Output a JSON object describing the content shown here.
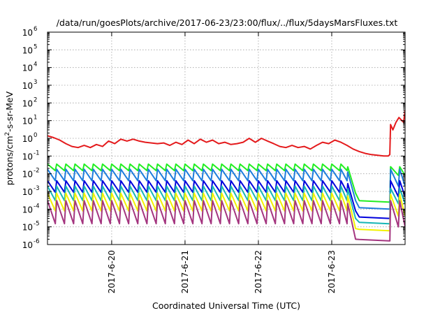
{
  "chart_data": {
    "type": "line",
    "title": "/data/run/goesPlots/archive/2017-06-23/23:00/flux/../flux/5daysMarsFluxes.txt",
    "xlabel": "Coordinated Universal Time (UTC)",
    "ylabel": "protons/cm²-s-sr-MeV",
    "ylabel_parts": {
      "pre": "protons/cm",
      "sup": "2",
      "post": "-s-sr-MeV"
    },
    "yscale": "log",
    "ylim": [
      1e-06,
      1000000.0
    ],
    "y_tick_base": "10",
    "y_tick_exponents": [
      "-6",
      "-5",
      "-4",
      "-3",
      "-2",
      "-1",
      "0",
      "1",
      "2",
      "3",
      "4",
      "5",
      "6"
    ],
    "x_range_days": [
      "2017-06-19 03:00",
      "2017-06-24 00:00"
    ],
    "x_tick_labels": [
      "2017-6-20",
      "2017-6-21",
      "2017-6-22",
      "2017-6-23"
    ],
    "x_ticks": [
      "2017-06-20 00:00",
      "2017-06-21 00:00",
      "2017-06-22 00:00",
      "2017-06-23 00:00"
    ],
    "grid": true,
    "legend": "none",
    "series": [
      {
        "color": "#e41a1c",
        "points": [
          [
            "2017-06-19 03:00",
            1.4
          ],
          [
            "2017-06-19 05:00",
            1.1
          ],
          [
            "2017-06-19 07:00",
            0.8
          ],
          [
            "2017-06-19 09:00",
            0.5
          ],
          [
            "2017-06-19 11:00",
            0.35
          ],
          [
            "2017-06-19 13:00",
            0.3
          ],
          [
            "2017-06-19 15:00",
            0.4
          ],
          [
            "2017-06-19 17:00",
            0.3
          ],
          [
            "2017-06-19 19:00",
            0.45
          ],
          [
            "2017-06-19 21:00",
            0.35
          ],
          [
            "2017-06-19 23:00",
            0.7
          ],
          [
            "2017-06-20 01:00",
            0.5
          ],
          [
            "2017-06-20 03:00",
            0.9
          ],
          [
            "2017-06-20 05:00",
            0.7
          ],
          [
            "2017-06-20 07:00",
            0.9
          ],
          [
            "2017-06-20 09:00",
            0.7
          ],
          [
            "2017-06-20 11:00",
            0.6
          ],
          [
            "2017-06-20 13:00",
            0.55
          ],
          [
            "2017-06-20 15:00",
            0.5
          ],
          [
            "2017-06-20 17:00",
            0.55
          ],
          [
            "2017-06-20 19:00",
            0.4
          ],
          [
            "2017-06-20 21:00",
            0.6
          ],
          [
            "2017-06-20 23:00",
            0.45
          ],
          [
            "2017-06-21 01:00",
            0.8
          ],
          [
            "2017-06-21 03:00",
            0.5
          ],
          [
            "2017-06-21 05:00",
            0.9
          ],
          [
            "2017-06-21 07:00",
            0.6
          ],
          [
            "2017-06-21 09:00",
            0.8
          ],
          [
            "2017-06-21 11:00",
            0.5
          ],
          [
            "2017-06-21 13:00",
            0.6
          ],
          [
            "2017-06-21 15:00",
            0.45
          ],
          [
            "2017-06-21 17:00",
            0.5
          ],
          [
            "2017-06-21 19:00",
            0.6
          ],
          [
            "2017-06-21 21:00",
            1.0
          ],
          [
            "2017-06-21 23:00",
            0.6
          ],
          [
            "2017-06-22 01:00",
            1.0
          ],
          [
            "2017-06-22 03:00",
            0.7
          ],
          [
            "2017-06-22 05:00",
            0.5
          ],
          [
            "2017-06-22 07:00",
            0.35
          ],
          [
            "2017-06-22 09:00",
            0.3
          ],
          [
            "2017-06-22 11:00",
            0.4
          ],
          [
            "2017-06-22 13:00",
            0.3
          ],
          [
            "2017-06-22 15:00",
            0.35
          ],
          [
            "2017-06-22 17:00",
            0.25
          ],
          [
            "2017-06-22 19:00",
            0.4
          ],
          [
            "2017-06-22 21:00",
            0.6
          ],
          [
            "2017-06-22 23:00",
            0.5
          ],
          [
            "2017-06-23 01:00",
            0.8
          ],
          [
            "2017-06-23 03:00",
            0.6
          ],
          [
            "2017-06-23 05:00",
            0.4
          ],
          [
            "2017-06-23 07:00",
            0.25
          ],
          [
            "2017-06-23 09:00",
            0.18
          ],
          [
            "2017-06-23 11:00",
            0.14
          ],
          [
            "2017-06-23 13:00",
            0.12
          ],
          [
            "2017-06-23 15:00",
            0.11
          ],
          [
            "2017-06-23 17:00",
            0.1
          ],
          [
            "2017-06-23 18:30",
            0.1
          ],
          [
            "2017-06-23 19:00",
            0.12
          ],
          [
            "2017-06-23 19:15",
            6
          ],
          [
            "2017-06-23 20:00",
            3
          ],
          [
            "2017-06-23 21:00",
            8
          ],
          [
            "2017-06-23 22:00",
            15
          ],
          [
            "2017-06-23 23:30",
            8
          ],
          [
            "2017-06-24 00:00",
            40
          ]
        ]
      },
      {
        "color": "#22ee22",
        "sawtooth": {
          "high": 0.035,
          "low": 0.015,
          "decay_to": 0.0008,
          "floor": 0.00025,
          "recover_high": 0.025,
          "recover_low": 0.008
        }
      },
      {
        "color": "#1e7ddc",
        "sawtooth": {
          "high": 0.018,
          "low": 0.004,
          "decay_to": 0.0003,
          "floor": 0.0001,
          "recover_high": 0.018,
          "recover_low": 0.002
        }
      },
      {
        "color": "#0000dd",
        "sawtooth": {
          "high": 0.004,
          "low": 0.0009,
          "decay_to": 8e-05,
          "floor": 3e-05,
          "recover_high": 0.004,
          "recover_low": 0.0005
        }
      },
      {
        "color": "#17b6b6",
        "sawtooth": {
          "high": 0.002,
          "low": 0.0003,
          "decay_to": 3e-05,
          "floor": 1.5e-05,
          "recover_high": 0.0015,
          "recover_low": 0.0002
        }
      },
      {
        "color": "#f2f200",
        "sawtooth": {
          "high": 0.0008,
          "low": 8e-05,
          "decay_to": 8e-06,
          "floor": 6e-06,
          "recover_high": 0.0007,
          "recover_low": 4e-05
        }
      },
      {
        "color": "#a4357f",
        "sawtooth": {
          "high": 0.0003,
          "low": 1.5e-05,
          "decay_to": 2e-06,
          "floor": 1.6e-06,
          "recover_high": 0.0003,
          "recover_low": 1e-05
        }
      }
    ]
  }
}
